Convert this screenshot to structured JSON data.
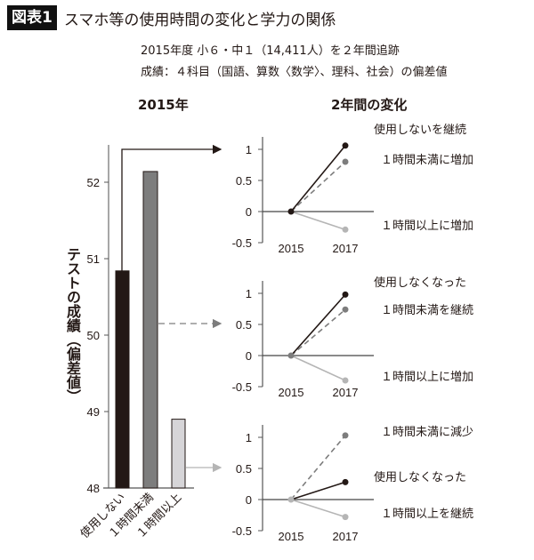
{
  "header": {
    "badge": "図表1",
    "title": "スマホ等の使用時間の変化と学力の関係",
    "subtitle_line1": "2015年度 小６・中１（14,411人）を２年間追跡",
    "subtitle_line2": "成績：４科目（国語、算数〈数学〉、理科、社会）の偏差値"
  },
  "left_panel": {
    "heading": "2015年",
    "ylabel": "テストの成績（偏差値）"
  },
  "right_panel": {
    "heading": "2年間の変化"
  },
  "colors": {
    "black": "#231815",
    "gray": "#7d7d7d",
    "light": "#b5b5b5",
    "light_fill": "#d6d5d8"
  },
  "chart_data": [
    {
      "type": "bar",
      "title": "2015年",
      "xlabel": "",
      "ylabel": "テストの成績（偏差値）",
      "categories": [
        "使用しない",
        "１時間未満",
        "１時間以上"
      ],
      "values": [
        50.84,
        52.14,
        48.9
      ],
      "ylim": [
        48,
        52.4
      ],
      "yticks": [
        48,
        49,
        50,
        51,
        52
      ],
      "grid": false
    },
    {
      "type": "line",
      "title": "使用しない（2015年）→ 2年間の変化",
      "x": [
        "2015",
        "2017"
      ],
      "ylim": [
        -0.5,
        1.2
      ],
      "yticks": [
        -0.5,
        0,
        0.5,
        1
      ],
      "series": [
        {
          "name": "使用しないを継続",
          "values": [
            0,
            1.06
          ],
          "style": "solid-black"
        },
        {
          "name": "１時間未満に増加",
          "values": [
            0,
            0.8
          ],
          "style": "dashed-gray"
        },
        {
          "name": "１時間以上に増加",
          "values": [
            0,
            -0.29
          ],
          "style": "solid-light"
        }
      ]
    },
    {
      "type": "line",
      "title": "１時間未満（2015年）→ 2年間の変化",
      "x": [
        "2015",
        "2017"
      ],
      "ylim": [
        -0.5,
        1.2
      ],
      "yticks": [
        -0.5,
        0,
        0.5,
        1
      ],
      "series": [
        {
          "name": "使用しなくなった",
          "values": [
            0,
            0.98
          ],
          "style": "solid-black"
        },
        {
          "name": "１時間未満を継続",
          "values": [
            0,
            0.74
          ],
          "style": "dashed-gray"
        },
        {
          "name": "１時間以上に増加",
          "values": [
            0,
            -0.4
          ],
          "style": "solid-light"
        }
      ]
    },
    {
      "type": "line",
      "title": "１時間以上（2015年）→ 2年間の変化",
      "x": [
        "2015",
        "2017"
      ],
      "ylim": [
        -0.5,
        1.2
      ],
      "yticks": [
        -0.5,
        0,
        0.5,
        1
      ],
      "series": [
        {
          "name": "１時間未満に減少",
          "values": [
            0,
            1.03
          ],
          "style": "dashed-gray"
        },
        {
          "name": "使用しなくなった",
          "values": [
            0,
            0.28
          ],
          "style": "solid-black"
        },
        {
          "name": "１時間以上を継続",
          "values": [
            0,
            -0.28
          ],
          "style": "solid-light"
        }
      ]
    }
  ]
}
